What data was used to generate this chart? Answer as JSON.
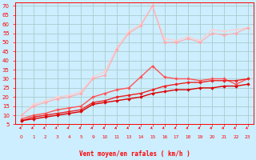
{
  "bg_color": "#cceeff",
  "grid_color": "#aacccc",
  "text_color": "#ff0000",
  "xlabel": "Vent moyen/en rafales ( km/h )",
  "x_positions": [
    0,
    1,
    2,
    3,
    4,
    5,
    9,
    10,
    11,
    13,
    14,
    15,
    16,
    17,
    18,
    19,
    20,
    21,
    22,
    23
  ],
  "x_labels": [
    "0",
    "1",
    "2",
    "3",
    "4",
    "5",
    "9",
    "10",
    "11",
    "13",
    "14",
    "15",
    "16",
    "17",
    "18",
    "19",
    "20",
    "21",
    "22",
    "23"
  ],
  "ylim": [
    5,
    72
  ],
  "yticks": [
    5,
    10,
    15,
    20,
    25,
    30,
    35,
    40,
    45,
    50,
    55,
    60,
    65,
    70
  ],
  "lines": [
    {
      "y": [
        7,
        8,
        9,
        10,
        11,
        12,
        16,
        17,
        18,
        19,
        20,
        22,
        23,
        24,
        24,
        25,
        25,
        26,
        26,
        27
      ],
      "color": "#dd0000",
      "lw": 1.0
    },
    {
      "y": [
        7,
        9,
        10,
        11,
        12,
        13,
        17,
        18,
        20,
        21,
        22,
        24,
        26,
        27,
        28,
        28,
        29,
        29,
        29,
        30
      ],
      "color": "#ee2222",
      "lw": 1.0
    },
    {
      "y": [
        8,
        10,
        11,
        13,
        14,
        15,
        20,
        22,
        24,
        25,
        31,
        37,
        31,
        30,
        30,
        29,
        30,
        30,
        27,
        30
      ],
      "color": "#ff5555",
      "lw": 1.0
    },
    {
      "y": [
        10,
        15,
        17,
        19,
        20,
        22,
        30,
        32,
        46,
        55,
        59,
        70,
        50,
        50,
        52,
        50,
        55,
        54,
        55,
        58
      ],
      "color": "#ffaaaa",
      "lw": 0.8
    },
    {
      "y": [
        10,
        16,
        18,
        20,
        21,
        23,
        31,
        34,
        47,
        56,
        60,
        70,
        52,
        51,
        53,
        51,
        57,
        56,
        57,
        58
      ],
      "color": "#ffcccc",
      "lw": 0.8
    }
  ],
  "marker": "D",
  "marker_size": 2.0,
  "figsize": [
    3.2,
    2.0
  ],
  "dpi": 100
}
